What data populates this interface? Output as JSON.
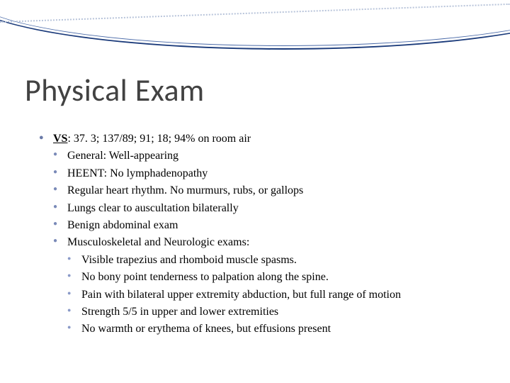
{
  "title": "Physical Exam",
  "vs_label": "VS",
  "vs_values": ": 37. 3; 137/89; 91; 18; 94% on room air",
  "level1": {
    "item0": "General: Well-appearing",
    "item1": "HEENT: No lymphadenopathy",
    "item2": "Regular heart rhythm. No murmurs, rubs, or gallops",
    "item3": "Lungs clear to auscultation bilaterally",
    "item4": "Benign abdominal exam",
    "item5": "Musculoskeletal and Neurologic exams:"
  },
  "level2": {
    "item0": "Visible trapezius and rhomboid muscle spasms.",
    "item1": "No bony point tenderness to palpation along the spine.",
    "item2": "Pain with bilateral upper extremity abduction, but full range of motion",
    "item3": " Strength 5/5 in upper and lower extremities",
    "item4": "No warmth or erythema of knees, but effusions present"
  },
  "colors": {
    "title_color": "#424242",
    "text_color": "#000000",
    "bullet_color": "#6a7aa8",
    "curve_color": "#1a3a7a",
    "background": "#ffffff"
  },
  "typography": {
    "title_fontsize": 44,
    "title_family": "Calibri",
    "body_fontsize": 16,
    "body_family": "Georgia"
  }
}
